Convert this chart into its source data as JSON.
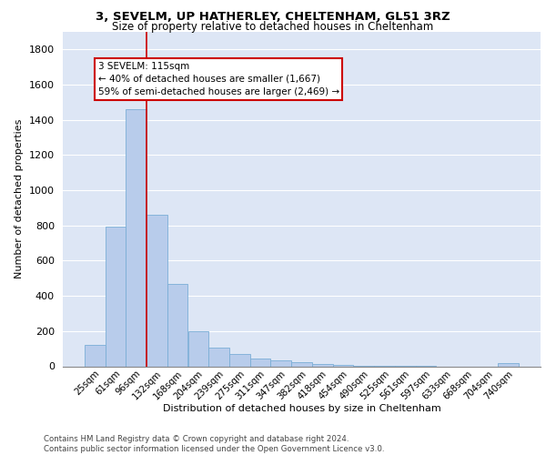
{
  "title_line1": "3, SEVELM, UP HATHERLEY, CHELTENHAM, GL51 3RZ",
  "title_line2": "Size of property relative to detached houses in Cheltenham",
  "xlabel": "Distribution of detached houses by size in Cheltenham",
  "ylabel": "Number of detached properties",
  "categories": [
    "25sqm",
    "61sqm",
    "96sqm",
    "132sqm",
    "168sqm",
    "204sqm",
    "239sqm",
    "275sqm",
    "311sqm",
    "347sqm",
    "382sqm",
    "418sqm",
    "454sqm",
    "490sqm",
    "525sqm",
    "561sqm",
    "597sqm",
    "633sqm",
    "668sqm",
    "704sqm",
    "740sqm"
  ],
  "values": [
    120,
    795,
    1460,
    860,
    470,
    200,
    105,
    68,
    45,
    32,
    25,
    15,
    8,
    5,
    4,
    3,
    3,
    0,
    0,
    0,
    18
  ],
  "bar_color": "#b8cceb",
  "bar_edge_color": "#7aaed6",
  "bg_color": "#dde6f5",
  "grid_color": "#ffffff",
  "vline_color": "#cc0000",
  "annotation_text": "3 SEVELM: 115sqm\n← 40% of detached houses are smaller (1,667)\n59% of semi-detached houses are larger (2,469) →",
  "annotation_box_color": "#ffffff",
  "annotation_box_edge": "#cc0000",
  "footnote": "Contains HM Land Registry data © Crown copyright and database right 2024.\nContains public sector information licensed under the Open Government Licence v3.0.",
  "ylim": [
    0,
    1900
  ],
  "yticks": [
    0,
    200,
    400,
    600,
    800,
    1000,
    1200,
    1400,
    1600,
    1800
  ]
}
